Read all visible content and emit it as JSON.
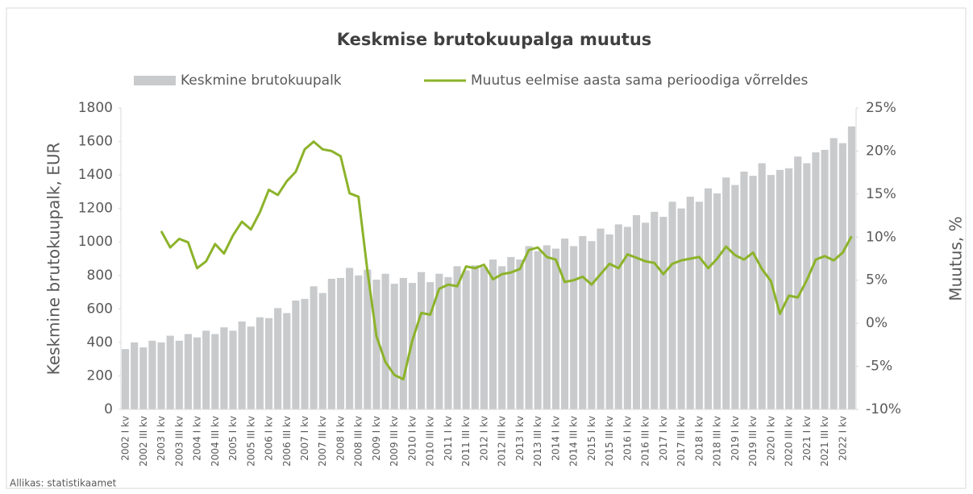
{
  "chart_data": {
    "type": "bar_line",
    "title": "Keskmise brutokuupalga muutus",
    "ylabel": "Keskmine brutokuupalk, EUR",
    "y2label": "Muutus, %",
    "source": "Allikas: statistikaamet",
    "categories": [
      "2002 I kv",
      null,
      "2002 III kv",
      null,
      "2003 I kv",
      null,
      "2003 III kv",
      null,
      "2004 I kv",
      null,
      "2004 III kv",
      null,
      "2005 I kv",
      null,
      "2005 III kv",
      null,
      "2006 I kv",
      null,
      "2006 III kv",
      null,
      "2007 I kv",
      null,
      "2007 III kv",
      null,
      "2008 I kv",
      null,
      "2008 III kv",
      null,
      "2009 I kv",
      null,
      "2009 III kv",
      null,
      "2010 I kv",
      null,
      "2010 III kv",
      null,
      "2011 I kv",
      null,
      "2011 III kv",
      null,
      "2012 I kv",
      null,
      "2012 III kv",
      null,
      "2013 I kv",
      null,
      "2013 III kv",
      null,
      "2014 I kv",
      null,
      "2014 III kv",
      null,
      "2015 I kv",
      null,
      "2015 III kv",
      null,
      "2016 I kv",
      null,
      "2016 III kv",
      null,
      "2017 I kv",
      null,
      "2017 III kv",
      null,
      "2018 I kv",
      null,
      "2018 III kv",
      null,
      "2019 I kv",
      null,
      "2019 III kv",
      null,
      "2020 I kv",
      null,
      "2020 III kv",
      null,
      "2021 I kv",
      null,
      "2021 III kv",
      null,
      "2022 I kv",
      null
    ],
    "series": [
      {
        "name": "Keskmine brutokuupalk",
        "color": "#c8cacc",
        "kind": "bar",
        "values": [
          360,
          400,
          370,
          410,
          400,
          440,
          410,
          450,
          430,
          470,
          450,
          490,
          470,
          525,
          495,
          550,
          545,
          605,
          575,
          650,
          660,
          735,
          695,
          780,
          785,
          845,
          800,
          835,
          775,
          810,
          750,
          785,
          755,
          820,
          760,
          810,
          790,
          855,
          830,
          860,
          850,
          895,
          855,
          910,
          895,
          975,
          945,
          980,
          960,
          1020,
          975,
          1035,
          1005,
          1080,
          1045,
          1105,
          1090,
          1160,
          1115,
          1180,
          1150,
          1240,
          1200,
          1270,
          1240,
          1320,
          1290,
          1385,
          1340,
          1420,
          1395,
          1470,
          1400,
          1430,
          1440,
          1510,
          1470,
          1535,
          1550,
          1620,
          1590,
          1690
        ]
      },
      {
        "name": "Muutus eelmise aasta sama perioodiga võrreldes",
        "color": "#8cb32a",
        "kind": "line",
        "axis": "y2",
        "values": [
          null,
          null,
          null,
          null,
          10.7,
          8.8,
          9.8,
          9.4,
          6.4,
          7.2,
          9.2,
          8.1,
          10.2,
          11.8,
          10.9,
          12.9,
          15.5,
          14.9,
          16.5,
          17.6,
          20.2,
          21.1,
          20.2,
          20.0,
          19.4,
          15.1,
          14.7,
          6.0,
          -1.5,
          -4.5,
          -6.0,
          -6.5,
          -2.0,
          1.2,
          1.0,
          4.0,
          4.5,
          4.3,
          6.6,
          6.4,
          6.8,
          5.1,
          5.7,
          5.9,
          6.3,
          8.5,
          8.8,
          7.7,
          7.4,
          4.8,
          5.0,
          5.4,
          4.5,
          5.7,
          6.9,
          6.4,
          8.0,
          7.6,
          7.2,
          7.0,
          5.7,
          6.9,
          7.3,
          7.5,
          7.7,
          6.4,
          7.5,
          8.9,
          7.9,
          7.4,
          8.2,
          6.3,
          4.9,
          1.1,
          3.2,
          3.0,
          5.0,
          7.4,
          7.8,
          7.3,
          8.2,
          10.1
        ]
      }
    ],
    "ylim": [
      0,
      1800
    ],
    "yticks": [
      0,
      200,
      400,
      600,
      800,
      1000,
      1200,
      1400,
      1600,
      1800
    ],
    "y2lim": [
      -10,
      25
    ],
    "y2ticks": [
      {
        "value": -10,
        "label": "-10%"
      },
      {
        "value": -5,
        "label": "-5%"
      },
      {
        "value": 0,
        "label": "0%"
      },
      {
        "value": 5,
        "label": "5%"
      },
      {
        "value": 10,
        "label": "10%"
      },
      {
        "value": 15,
        "label": "15%"
      },
      {
        "value": 20,
        "label": "20%"
      },
      {
        "value": 25,
        "label": "25%"
      }
    ],
    "legend": "top",
    "grid": false
  }
}
